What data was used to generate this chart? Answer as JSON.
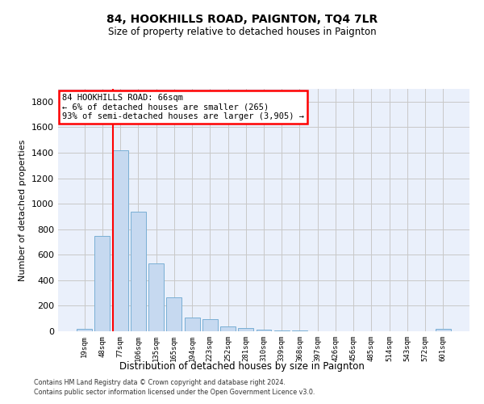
{
  "title": "84, HOOKHILLS ROAD, PAIGNTON, TQ4 7LR",
  "subtitle": "Size of property relative to detached houses in Paignton",
  "xlabel": "Distribution of detached houses by size in Paignton",
  "ylabel": "Number of detached properties",
  "footer1": "Contains HM Land Registry data © Crown copyright and database right 2024.",
  "footer2": "Contains public sector information licensed under the Open Government Licence v3.0.",
  "bar_labels": [
    "19sqm",
    "48sqm",
    "77sqm",
    "106sqm",
    "135sqm",
    "165sqm",
    "194sqm",
    "223sqm",
    "252sqm",
    "281sqm",
    "310sqm",
    "339sqm",
    "368sqm",
    "397sqm",
    "426sqm",
    "456sqm",
    "485sqm",
    "514sqm",
    "543sqm",
    "572sqm",
    "601sqm"
  ],
  "bar_values": [
    22,
    745,
    1420,
    940,
    530,
    265,
    105,
    93,
    40,
    28,
    15,
    8,
    5,
    3,
    3,
    3,
    2,
    2,
    2,
    2,
    20
  ],
  "bar_color": "#c6d9f0",
  "bar_edgecolor": "#7aafd4",
  "grid_color": "#c8c8c8",
  "background_color": "#eaf0fb",
  "red_line_index": 2,
  "annotation_text": "84 HOOKHILLS ROAD: 66sqm\n← 6% of detached houses are smaller (265)\n93% of semi-detached houses are larger (3,905) →",
  "ylim": [
    0,
    1900
  ],
  "yticks": [
    0,
    200,
    400,
    600,
    800,
    1000,
    1200,
    1400,
    1600,
    1800
  ],
  "title_fontsize": 10,
  "subtitle_fontsize": 8.5
}
